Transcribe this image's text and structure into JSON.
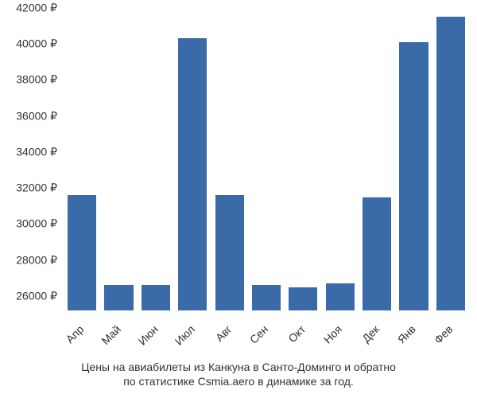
{
  "chart": {
    "type": "bar",
    "categories": [
      "Апр",
      "Май",
      "Июн",
      "Июл",
      "Авг",
      "Сен",
      "Окт",
      "Ноя",
      "Дек",
      "Янв",
      "Фев"
    ],
    "values": [
      31600,
      26600,
      26600,
      40300,
      31600,
      26600,
      26500,
      26700,
      31500,
      40100,
      41500
    ],
    "bar_color": "#3a6aa8",
    "background_color": "#ffffff",
    "ylim": [
      25200,
      42000
    ],
    "yticks": [
      26000,
      28000,
      30000,
      32000,
      34000,
      36000,
      38000,
      40000,
      42000
    ],
    "ytick_labels": [
      "26000 ₽",
      "28000 ₽",
      "30000 ₽",
      "32000 ₽",
      "34000 ₽",
      "36000 ₽",
      "38000 ₽",
      "40000 ₽",
      "42000 ₽"
    ],
    "bar_width_ratio": 0.78,
    "label_fontsize": 14,
    "label_color": "#333333",
    "x_label_rotation": -45
  },
  "caption": {
    "line1": "Цены на авиабилеты из Канкуна в Санто-Доминго и обратно",
    "line2": "по статистике Csmia.aero в динамике за год."
  }
}
